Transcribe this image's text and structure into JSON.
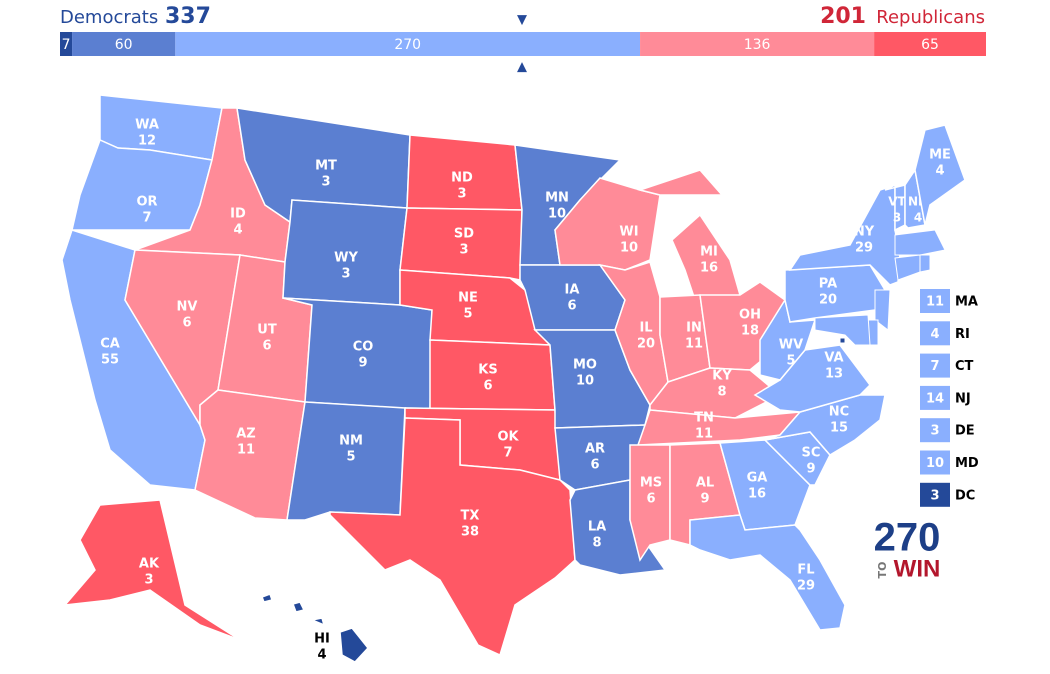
{
  "header": {
    "left_name": "Democrats",
    "left_total": 337,
    "right_total": 201,
    "right_name": "Republicans"
  },
  "bar": {
    "segments": [
      {
        "value": 7,
        "color": "#244999"
      },
      {
        "value": 60,
        "color": "#5b7fd1"
      },
      {
        "value": 270,
        "color": "#8aaffe"
      },
      {
        "value": 136,
        "color": "#ff8b98"
      },
      {
        "value": 65,
        "color": "#ff5865"
      }
    ]
  },
  "states": [
    {
      "abbr": "WA",
      "votes": 12,
      "color": "#8aaffe"
    },
    {
      "abbr": "OR",
      "votes": 7,
      "color": "#8aaffe"
    },
    {
      "abbr": "CA",
      "votes": 55,
      "color": "#8aaffe"
    },
    {
      "abbr": "ID",
      "votes": 4,
      "color": "#ff8b98"
    },
    {
      "abbr": "NV",
      "votes": 6,
      "color": "#ff8b98"
    },
    {
      "abbr": "UT",
      "votes": 6,
      "color": "#ff8b98"
    },
    {
      "abbr": "AZ",
      "votes": 11,
      "color": "#ff8b98"
    },
    {
      "abbr": "MT",
      "votes": 3,
      "color": "#5b7fd1"
    },
    {
      "abbr": "WY",
      "votes": 3,
      "color": "#5b7fd1"
    },
    {
      "abbr": "CO",
      "votes": 9,
      "color": "#5b7fd1"
    },
    {
      "abbr": "NM",
      "votes": 5,
      "color": "#5b7fd1"
    },
    {
      "abbr": "ND",
      "votes": 3,
      "color": "#ff5865"
    },
    {
      "abbr": "SD",
      "votes": 3,
      "color": "#ff5865"
    },
    {
      "abbr": "NE",
      "votes": 5,
      "color": "#ff5865"
    },
    {
      "abbr": "KS",
      "votes": 6,
      "color": "#ff5865"
    },
    {
      "abbr": "OK",
      "votes": 7,
      "color": "#ff5865"
    },
    {
      "abbr": "TX",
      "votes": 38,
      "color": "#ff5865"
    },
    {
      "abbr": "MN",
      "votes": 10,
      "color": "#5b7fd1"
    },
    {
      "abbr": "IA",
      "votes": 6,
      "color": "#5b7fd1"
    },
    {
      "abbr": "MO",
      "votes": 10,
      "color": "#5b7fd1"
    },
    {
      "abbr": "AR",
      "votes": 6,
      "color": "#5b7fd1"
    },
    {
      "abbr": "LA",
      "votes": 8,
      "color": "#5b7fd1"
    },
    {
      "abbr": "WI",
      "votes": 10,
      "color": "#ff8b98"
    },
    {
      "abbr": "MI",
      "votes": 16,
      "color": "#ff8b98"
    },
    {
      "abbr": "IL",
      "votes": 20,
      "color": "#ff8b98"
    },
    {
      "abbr": "IN",
      "votes": 11,
      "color": "#ff8b98"
    },
    {
      "abbr": "OH",
      "votes": 18,
      "color": "#ff8b98"
    },
    {
      "abbr": "KY",
      "votes": 8,
      "color": "#ff8b98"
    },
    {
      "abbr": "TN",
      "votes": 11,
      "color": "#ff8b98"
    },
    {
      "abbr": "MS",
      "votes": 6,
      "color": "#ff8b98"
    },
    {
      "abbr": "AL",
      "votes": 9,
      "color": "#ff8b98"
    },
    {
      "abbr": "GA",
      "votes": 16,
      "color": "#8aaffe"
    },
    {
      "abbr": "FL",
      "votes": 29,
      "color": "#8aaffe"
    },
    {
      "abbr": "SC",
      "votes": 9,
      "color": "#8aaffe"
    },
    {
      "abbr": "NC",
      "votes": 15,
      "color": "#8aaffe"
    },
    {
      "abbr": "VA",
      "votes": 13,
      "color": "#8aaffe"
    },
    {
      "abbr": "WV",
      "votes": 5,
      "color": "#8aaffe"
    },
    {
      "abbr": "PA",
      "votes": 20,
      "color": "#8aaffe"
    },
    {
      "abbr": "NY",
      "votes": 29,
      "color": "#8aaffe"
    },
    {
      "abbr": "VT",
      "votes": 3,
      "color": "#8aaffe"
    },
    {
      "abbr": "NH",
      "votes": 4,
      "color": "#8aaffe"
    },
    {
      "abbr": "ME",
      "votes": 4,
      "color": "#8aaffe"
    },
    {
      "abbr": "AK",
      "votes": 3,
      "color": "#ff5865"
    },
    {
      "abbr": "HI",
      "votes": 4,
      "color": "#244999"
    }
  ],
  "small_states": [
    {
      "abbr": "MA",
      "votes": 11,
      "color": "#8aaffe"
    },
    {
      "abbr": "RI",
      "votes": 4,
      "color": "#8aaffe"
    },
    {
      "abbr": "CT",
      "votes": 7,
      "color": "#8aaffe"
    },
    {
      "abbr": "NJ",
      "votes": 14,
      "color": "#8aaffe"
    },
    {
      "abbr": "DE",
      "votes": 3,
      "color": "#8aaffe"
    },
    {
      "abbr": "MD",
      "votes": 10,
      "color": "#8aaffe"
    },
    {
      "abbr": "DC",
      "votes": 3,
      "color": "#244999"
    }
  ],
  "logo": {
    "number": "270",
    "to": "TO",
    "win": "WIN"
  }
}
